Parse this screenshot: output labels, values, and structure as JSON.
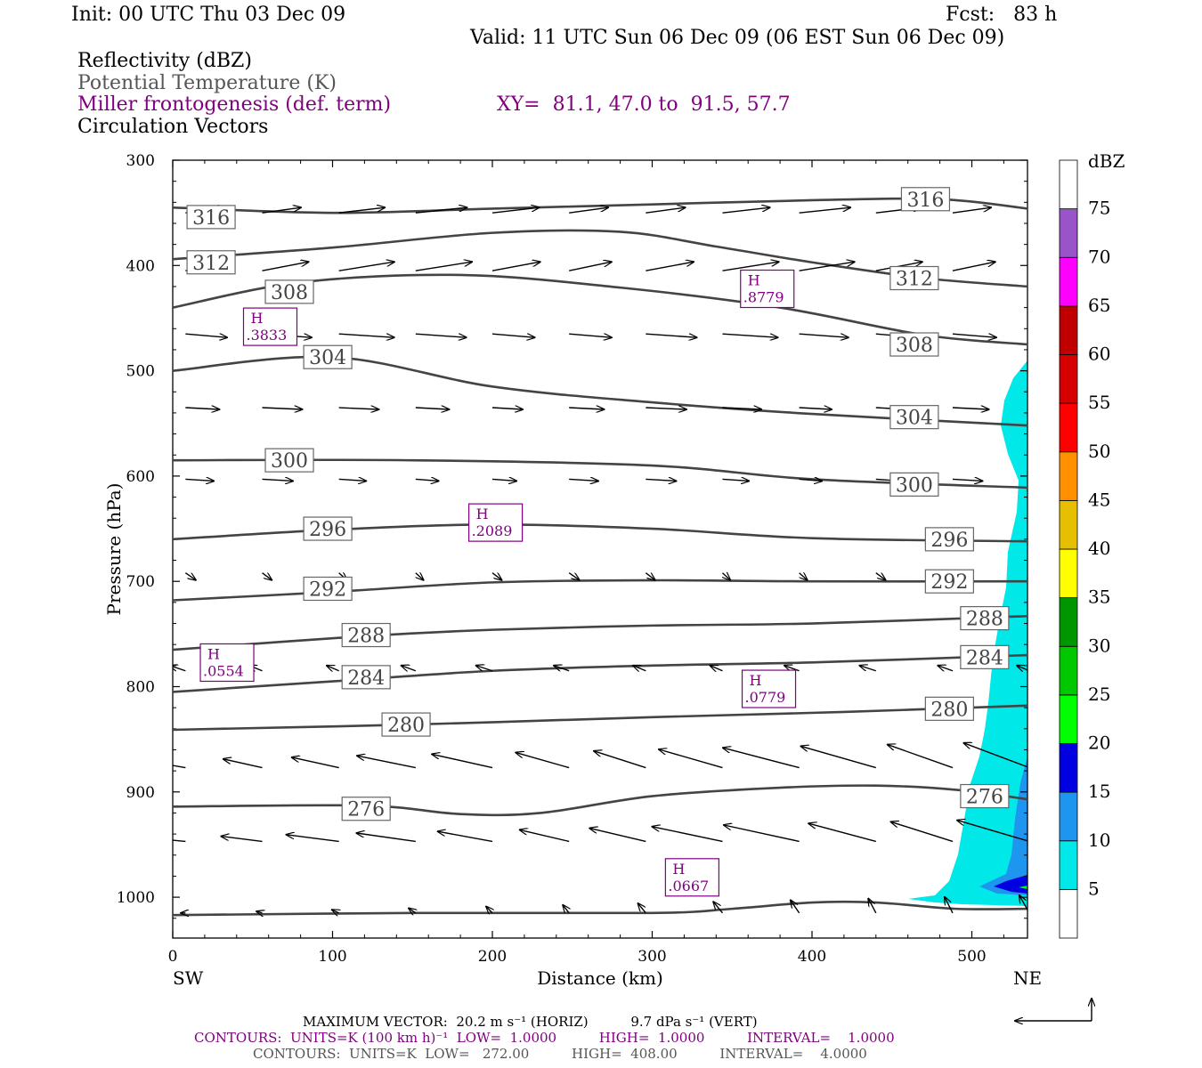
{
  "header": {
    "init": "Init: 00 UTC Thu 03 Dec 09",
    "fcst": "Fcst:   83 h",
    "valid": "Valid: 11 UTC Sun 06 Dec 09 (06 EST Sun 06 Dec 09)",
    "field1": "Reflectivity (dBZ)",
    "field2": "Potential Temperature (K)",
    "field3": "Miller frontogenesis (def. term)",
    "xy": "XY=  81.1, 47.0 to  91.5, 57.7",
    "field4": "Circulation Vectors"
  },
  "colors": {
    "theta": "#444444",
    "fronto": "#800080",
    "refl_scale": [
      "#ffffff",
      "#00e8e8",
      "#1e96f0",
      "#0000e0",
      "#00ff00",
      "#00c800",
      "#009600",
      "#ffff00",
      "#e6c000",
      "#ff9000",
      "#ff0000",
      "#d60000",
      "#c00000",
      "#ff00ff",
      "#9955c8",
      "#ffffff"
    ]
  },
  "colorbar": {
    "title": "dBZ",
    "labels": [
      "5",
      "10",
      "15",
      "20",
      "25",
      "30",
      "35",
      "40",
      "45",
      "50",
      "55",
      "60",
      "65",
      "70",
      "75"
    ]
  },
  "chart_data": {
    "type": "cross-section",
    "xlabel": "Distance (km)",
    "ylabel": "Pressure (hPa)",
    "xlim": [
      0,
      535
    ],
    "ylim": [
      1040,
      300
    ],
    "xticks": [
      0,
      100,
      200,
      300,
      400,
      500
    ],
    "yticks": [
      300,
      400,
      500,
      600,
      700,
      800,
      900,
      1000
    ],
    "end_left": "SW",
    "end_right": "NE",
    "theta_contours": [
      {
        "label": "316",
        "points": [
          [
            0,
            345
          ],
          [
            100,
            350
          ],
          [
            200,
            346
          ],
          [
            300,
            342
          ],
          [
            400,
            338
          ],
          [
            480,
            337
          ],
          [
            535,
            346
          ]
        ],
        "labels_at": [
          [
            24,
            354
          ],
          [
            471,
            337
          ]
        ]
      },
      {
        "label": "312",
        "points": [
          [
            0,
            394
          ],
          [
            100,
            383
          ],
          [
            200,
            369
          ],
          [
            280,
            368
          ],
          [
            340,
            382
          ],
          [
            400,
            397
          ],
          [
            470,
            412
          ],
          [
            535,
            420
          ]
        ],
        "labels_at": [
          [
            24,
            397
          ],
          [
            464,
            412
          ]
        ]
      },
      {
        "label": "308",
        "points": [
          [
            0,
            440
          ],
          [
            80,
            416
          ],
          [
            180,
            409
          ],
          [
            280,
            421
          ],
          [
            380,
            440
          ],
          [
            470,
            466
          ],
          [
            535,
            475
          ]
        ],
        "labels_at": [
          [
            73,
            425
          ],
          [
            464,
            475
          ]
        ]
      },
      {
        "label": "304",
        "points": [
          [
            0,
            500
          ],
          [
            100,
            487
          ],
          [
            200,
            515
          ],
          [
            300,
            530
          ],
          [
            400,
            541
          ],
          [
            535,
            552
          ]
        ],
        "labels_at": [
          [
            97,
            487
          ],
          [
            464,
            544
          ]
        ]
      },
      {
        "label": "300",
        "points": [
          [
            0,
            585
          ],
          [
            150,
            585
          ],
          [
            300,
            590
          ],
          [
            400,
            603
          ],
          [
            535,
            611
          ]
        ],
        "labels_at": [
          [
            73,
            585
          ],
          [
            464,
            608
          ]
        ]
      },
      {
        "label": "296",
        "points": [
          [
            0,
            660
          ],
          [
            100,
            651
          ],
          [
            200,
            646
          ],
          [
            300,
            650
          ],
          [
            400,
            659
          ],
          [
            535,
            662
          ]
        ],
        "labels_at": [
          [
            97,
            650
          ],
          [
            486,
            660
          ]
        ]
      },
      {
        "label": "292",
        "points": [
          [
            0,
            718
          ],
          [
            100,
            710
          ],
          [
            200,
            701
          ],
          [
            300,
            699
          ],
          [
            400,
            700
          ],
          [
            535,
            700
          ]
        ],
        "labels_at": [
          [
            97,
            707
          ],
          [
            486,
            700
          ]
        ]
      },
      {
        "label": "288",
        "points": [
          [
            0,
            765
          ],
          [
            120,
            752
          ],
          [
            200,
            746
          ],
          [
            300,
            742
          ],
          [
            400,
            740
          ],
          [
            535,
            733
          ]
        ],
        "labels_at": [
          [
            121,
            751
          ],
          [
            508,
            735
          ]
        ]
      },
      {
        "label": "284",
        "points": [
          [
            0,
            805
          ],
          [
            100,
            795
          ],
          [
            200,
            785
          ],
          [
            300,
            780
          ],
          [
            400,
            777
          ],
          [
            535,
            770
          ]
        ],
        "labels_at": [
          [
            121,
            791
          ],
          [
            508,
            772
          ]
        ]
      },
      {
        "label": "280",
        "points": [
          [
            0,
            841
          ],
          [
            150,
            836
          ],
          [
            300,
            829
          ],
          [
            420,
            824
          ],
          [
            535,
            818
          ]
        ],
        "labels_at": [
          [
            146,
            836
          ],
          [
            486,
            821
          ]
        ]
      },
      {
        "label": "276",
        "points": [
          [
            0,
            914
          ],
          [
            120,
            913
          ],
          [
            180,
            921
          ],
          [
            230,
            920
          ],
          [
            300,
            904
          ],
          [
            380,
            896
          ],
          [
            440,
            894
          ],
          [
            490,
            898
          ],
          [
            535,
            907
          ]
        ],
        "labels_at": [
          [
            121,
            916
          ],
          [
            508,
            904
          ]
        ]
      },
      {
        "label": "",
        "points": [
          [
            0,
            1017
          ],
          [
            150,
            1015
          ],
          [
            300,
            1015
          ],
          [
            350,
            1011
          ],
          [
            400,
            1005
          ],
          [
            440,
            1005
          ],
          [
            490,
            1011
          ],
          [
            535,
            1011
          ]
        ],
        "labels_at": []
      }
    ],
    "frontogenesis_maxima": [
      {
        "label": "H",
        "value": ".0554",
        "x": 34,
        "p": 778
      },
      {
        "label": "H",
        "value": ".3833",
        "x": 61,
        "p": 459
      },
      {
        "label": "H",
        "value": ".2089",
        "x": 202,
        "p": 645
      },
      {
        "label": "H",
        "value": ".8779",
        "x": 372,
        "p": 423
      },
      {
        "label": "H",
        "value": ".0779",
        "x": 373,
        "p": 803
      },
      {
        "label": "H",
        "value": ".0667",
        "x": 325,
        "p": 982
      }
    ],
    "vector_rows": [
      {
        "p": 350,
        "du": 2.5,
        "dv": -0.3
      },
      {
        "p": 405,
        "du": 2.8,
        "dv": -0.5
      },
      {
        "p": 465,
        "du": 2.7,
        "dv": 0.2
      },
      {
        "p": 535,
        "du": 2.0,
        "dv": 0.1
      },
      {
        "p": 603,
        "du": 1.5,
        "dv": 0.1
      },
      {
        "p": 692,
        "du": 0.5,
        "dv": 0.4
      },
      {
        "p": 785,
        "du": -0.8,
        "dv": -0.3
      },
      {
        "p": 877,
        "du": -2.4,
        "dv": -0.4
      },
      {
        "p": 947,
        "du": -2.4,
        "dv": -0.2
      },
      {
        "p": 1015,
        "du": -0.3,
        "dv": 0
      }
    ],
    "reflectivity_region": "cyan 5-10 dBZ band along the NE edge from ~480 hPa to 1010 hPa, with 10-15 dBZ and a small 15-20 dBZ core near 990 hPa"
  },
  "footer": {
    "line1": "MAXIMUM VECTOR:  20.2 m s⁻¹ (HORIZ)          9.7 dPa s⁻¹ (VERT)",
    "line2": "CONTOURS:  UNITS=K (100 km h)⁻¹  LOW=  1.0000          HIGH=  1.0000          INTERVAL=    1.0000",
    "line3": "CONTOURS:  UNITS=K  LOW=   272.00          HIGH=  408.00          INTERVAL=    4.0000"
  }
}
